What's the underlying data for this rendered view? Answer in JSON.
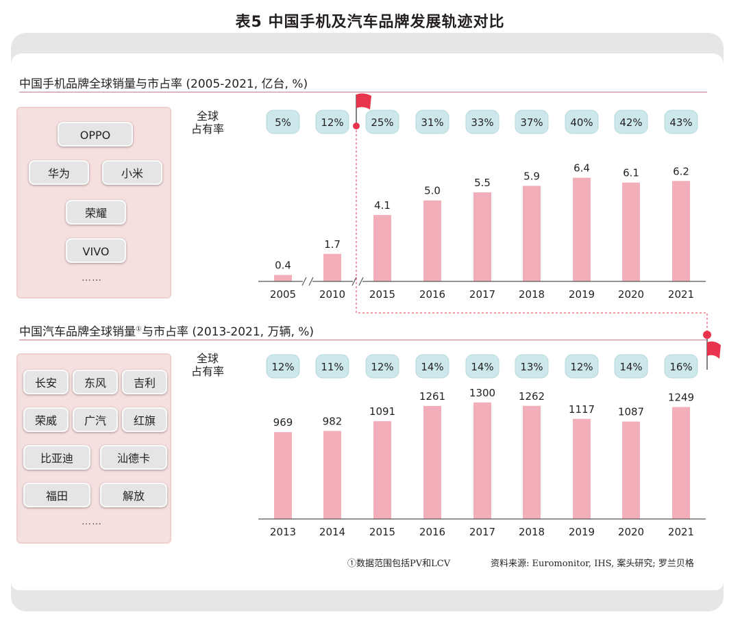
{
  "title": "表5  中国手机及汽车品牌发展轨迹对比",
  "phone": {
    "section_title": "中国手机品牌全球销量与市占率 (2005-2021, 亿台, %)",
    "share_label": [
      "全球",
      "占有率"
    ],
    "brands": [
      "OPPO",
      "华为",
      "小米",
      "荣耀",
      "VIVO"
    ],
    "more": "……"
  },
  "auto": {
    "section_title": "中国汽车品牌全球销量",
    "section_title_sup": "①",
    "section_title_tail": "与市占率 (2013-2021, 万辆, %)",
    "share_label": [
      "全球",
      "占有率"
    ],
    "brands": [
      "长安",
      "东风",
      "吉利",
      "荣威",
      "广汽",
      "红旗",
      "比亚迪",
      "汕德卡",
      "福田",
      "解放"
    ],
    "more": "……"
  },
  "footnote": {
    "note": "①数据范围包括PV和LCV",
    "source": "资料来源: Euromonitor, IHS, 案头研究; 罗兰贝格"
  },
  "colors": {
    "bar": "#f2afb9",
    "pill": "#cde8ea",
    "flag": "#e8344f",
    "rule": "#c97886"
  },
  "chart_data": [
    {
      "type": "bar",
      "title": "中国手机品牌全球销量与市占率 (2005-2021, 亿台, %)",
      "unit": "亿台",
      "categories": [
        "2005",
        "2010",
        "2015",
        "2016",
        "2017",
        "2018",
        "2019",
        "2020",
        "2021"
      ],
      "values": [
        0.4,
        1.7,
        4.1,
        5.0,
        5.5,
        5.9,
        6.4,
        6.1,
        6.2
      ],
      "value_labels": [
        "0.4",
        "1.7",
        "4.1",
        "5.0",
        "5.5",
        "5.9",
        "6.4",
        "6.1",
        "6.2"
      ],
      "share": [
        "5%",
        "12%",
        "25%",
        "31%",
        "33%",
        "37%",
        "40%",
        "42%",
        "43%"
      ],
      "axis_breaks": [
        "2005-2010",
        "2010-2015"
      ],
      "ylim": [
        0,
        7
      ],
      "grid": false
    },
    {
      "type": "bar",
      "title": "中国汽车品牌全球销量与市占率 (2013-2021, 万辆, %)",
      "unit": "万辆",
      "categories": [
        "2013",
        "2014",
        "2015",
        "2016",
        "2017",
        "2018",
        "2019",
        "2020",
        "2021"
      ],
      "values": [
        969,
        982,
        1091,
        1261,
        1300,
        1262,
        1117,
        1087,
        1249
      ],
      "value_labels": [
        "969",
        "982",
        "1091",
        "1261",
        "1300",
        "1262",
        "1117",
        "1087",
        "1249"
      ],
      "share": [
        "12%",
        "11%",
        "12%",
        "14%",
        "14%",
        "13%",
        "12%",
        "14%",
        "16%"
      ],
      "ylim": [
        0,
        1400
      ],
      "grid": false
    }
  ]
}
